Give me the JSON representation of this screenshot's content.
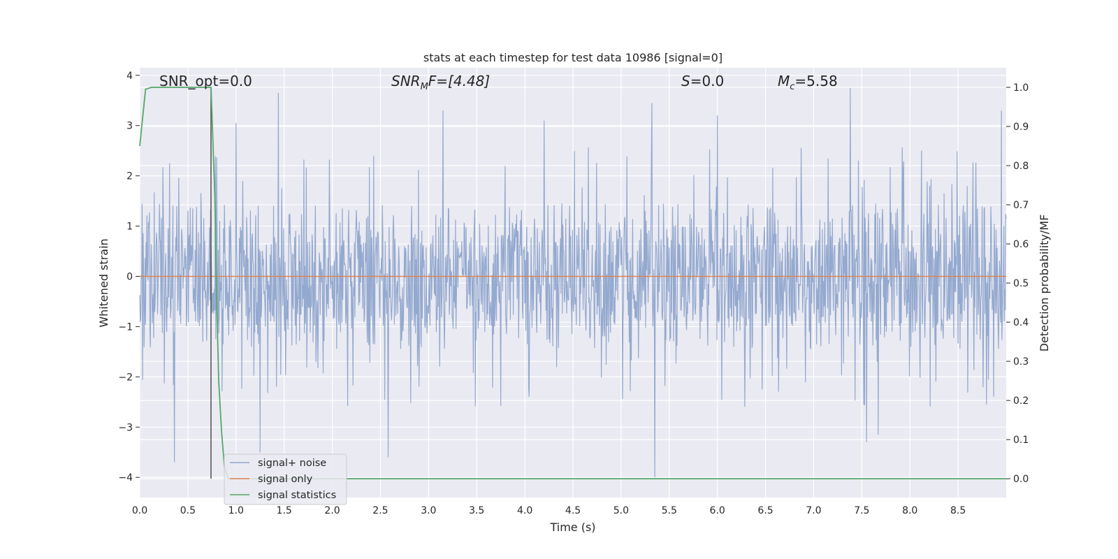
{
  "chart_data": {
    "type": "line",
    "title": "stats at each timestep for test data 10986 [signal=0]",
    "xlabel": "Time (s)",
    "ylabel": "Whitened strain",
    "y2label": "Detection probability/MF",
    "xlim": [
      0.0,
      9.0
    ],
    "ylim": [
      -4.4,
      4.15
    ],
    "y2lim": [
      -0.048,
      1.05
    ],
    "xticks": [
      "0.0",
      "0.5",
      "1.0",
      "1.5",
      "2.0",
      "2.5",
      "3.0",
      "3.5",
      "4.0",
      "4.5",
      "5.0",
      "5.5",
      "6.0",
      "6.5",
      "7.0",
      "7.5",
      "8.0",
      "8.5"
    ],
    "yticks": [
      "4",
      "3",
      "2",
      "1",
      "0",
      "−1",
      "−2",
      "−3",
      "−4"
    ],
    "y2ticks": [
      "1.0",
      "0.9",
      "0.8",
      "0.7",
      "0.6",
      "0.5",
      "0.4",
      "0.3",
      "0.2",
      "0.1",
      "0.0"
    ],
    "grid": true,
    "legend_position": "lower-left",
    "annotations": {
      "snr_opt": "SNR_opt=0.0",
      "snr_mf_sym": "SNR",
      "snr_mf_sub": "M",
      "snr_mf_rest": "F=[4.48]",
      "s_sym": "S",
      "s_rest": "=0.0",
      "mc_sym": "M",
      "mc_sub": "c",
      "mc_rest": "=5.58"
    },
    "series": [
      {
        "name": "signal+ noise",
        "color": "#8fa5cc",
        "description_values": "whitened noise, approx +/-1.5 band with spikes to about +/-3.8",
        "spikes": [
          {
            "x": 0.36,
            "y": -3.7
          },
          {
            "x": 1.44,
            "y": 3.65
          },
          {
            "x": 1.0,
            "y": 3.05
          },
          {
            "x": 1.25,
            "y": -3.5
          },
          {
            "x": 2.58,
            "y": -3.6
          },
          {
            "x": 3.15,
            "y": 3.3
          },
          {
            "x": 5.32,
            "y": 3.45
          },
          {
            "x": 5.35,
            "y": -4.0
          },
          {
            "x": 6.0,
            "y": 3.2
          },
          {
            "x": 7.38,
            "y": 3.75
          },
          {
            "x": 7.55,
            "y": -3.3
          },
          {
            "x": 7.67,
            "y": -3.15
          },
          {
            "x": 8.95,
            "y": 3.3
          },
          {
            "x": 4.2,
            "y": 3.1
          }
        ]
      },
      {
        "name": "signal only",
        "color": "#dd8452",
        "x": [
          0.0,
          9.0
        ],
        "y": [
          0.0,
          0.0
        ]
      },
      {
        "name": "signal statistics",
        "color": "#55a868",
        "axis": "right",
        "x": [
          0.0,
          0.06,
          0.12,
          0.2,
          0.3,
          0.5,
          0.7,
          0.74,
          0.78,
          0.8,
          0.82,
          0.85,
          0.88,
          0.92,
          1.0,
          2.0,
          4.0,
          6.0,
          8.0,
          9.0
        ],
        "y": [
          0.85,
          0.995,
          1.0,
          1.0,
          1.0,
          1.0,
          1.0,
          1.0,
          0.72,
          0.45,
          0.25,
          0.12,
          0.03,
          0.0,
          0.0,
          0.0,
          0.0,
          0.0,
          0.0,
          0.0
        ]
      }
    ],
    "marker_line": {
      "x": 0.74,
      "color": "#444444"
    }
  }
}
